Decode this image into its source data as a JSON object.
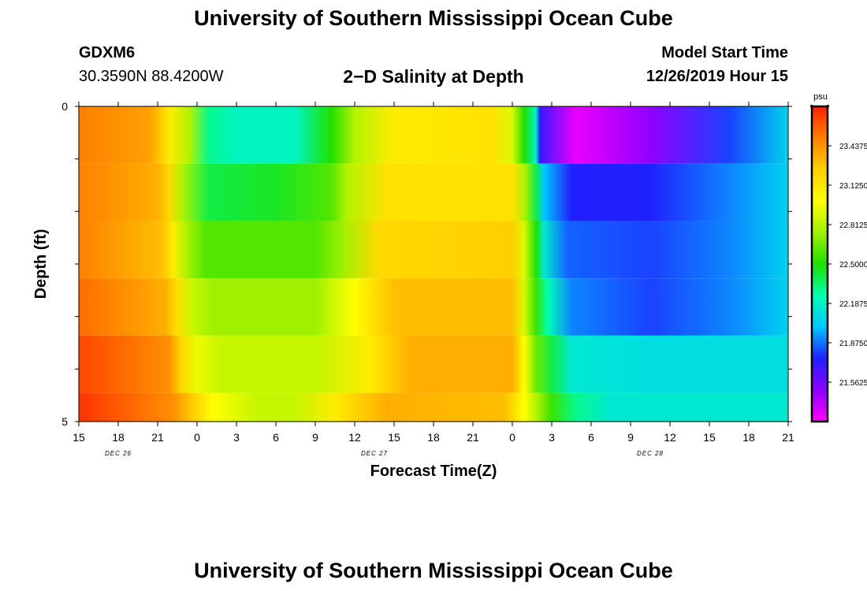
{
  "page": {
    "title": "University of Southern Mississippi Ocean Cube",
    "footer_title": "University of Southern Mississippi Ocean Cube",
    "station_id": "GDXM6",
    "station_location": "30.3590N 88.4200W",
    "model_start_label": "Model Start Time",
    "model_start_value": "12/26/2019 Hour 15",
    "subtitle": "2−D Salinity at Depth"
  },
  "chart_data": {
    "type": "heatmap",
    "title": "2−D Salinity at Depth",
    "xlabel": "Forecast Time(Z)",
    "ylabel": "Depth (ft)",
    "x_start": "12/26/2019 Hour 15",
    "x_tick_labels": [
      "15",
      "18",
      "21",
      "0",
      "3",
      "6",
      "9",
      "12",
      "15",
      "18",
      "21",
      "0",
      "3",
      "6",
      "9",
      "12",
      "15",
      "18",
      "21"
    ],
    "date_labels": [
      {
        "label": "DEC 26",
        "at_tick": 1
      },
      {
        "label": "DEC 27",
        "at_tick": 7.5
      },
      {
        "label": "DEC 28",
        "at_tick": 14.5
      }
    ],
    "y_tick_labels": [
      {
        "value": 0,
        "label": "0"
      },
      {
        "value": 5,
        "label": "5"
      }
    ],
    "ylim": [
      0,
      5
    ],
    "y_reversed": true,
    "depth_bands": 5,
    "colorbar": {
      "unit": "psu",
      "min": 21.25,
      "max": 23.75,
      "levels": [
        "23.4375",
        "23.1250",
        "22.8125",
        "22.5000",
        "22.1875",
        "21.8750",
        "21.5625"
      ],
      "colors": [
        "#ff00ff",
        "#9000ff",
        "#2020ff",
        "#00c8ff",
        "#00ffb0",
        "#20e000",
        "#a0f000",
        "#ffff00",
        "#ffcf00",
        "#ff8000",
        "#ff2000"
      ]
    },
    "profiles": [
      {
        "depth": "0-1",
        "x": [
          0,
          1.8,
          2.3,
          2.8,
          3.3,
          4.0,
          5.5,
          6.4,
          7.0,
          8.0,
          10.5,
          11.0,
          11.3,
          11.6,
          11.7,
          12.6,
          14.5,
          16.5,
          18.0
        ],
        "v": [
          23.5,
          23.4,
          23.1,
          22.8,
          22.3,
          22.2,
          22.2,
          22.5,
          22.8,
          23.1,
          23.15,
          22.9,
          22.5,
          22.2,
          21.7,
          21.3,
          21.5,
          21.8,
          22.05
        ]
      },
      {
        "depth": "1-2",
        "x": [
          0,
          2.0,
          2.3,
          2.6,
          3.3,
          5.0,
          6.4,
          6.8,
          7.8,
          11.0,
          11.3,
          11.6,
          11.8,
          12.5,
          14.5,
          16.5,
          18.0
        ],
        "v": [
          23.5,
          23.35,
          23.2,
          22.8,
          22.4,
          22.45,
          22.6,
          22.8,
          23.15,
          23.15,
          22.8,
          22.4,
          22.0,
          21.75,
          21.75,
          21.9,
          22.05
        ]
      },
      {
        "depth": "2-3",
        "x": [
          0,
          2.1,
          2.4,
          2.7,
          3.2,
          6.0,
          6.7,
          7.6,
          11.0,
          11.3,
          11.6,
          11.8,
          12.4,
          14.5,
          16.5,
          18.0
        ],
        "v": [
          23.5,
          23.3,
          23.1,
          22.8,
          22.6,
          22.6,
          22.75,
          23.2,
          23.25,
          22.9,
          22.5,
          22.15,
          21.85,
          21.8,
          21.9,
          22.05
        ]
      },
      {
        "depth": "3-4",
        "x": [
          0,
          2.2,
          2.5,
          2.9,
          3.4,
          6.0,
          7.0,
          8.0,
          11.0,
          11.3,
          11.6,
          11.9,
          12.5,
          14.5,
          16.5,
          18.0
        ],
        "v": [
          23.55,
          23.35,
          23.15,
          22.85,
          22.75,
          22.75,
          23.0,
          23.3,
          23.3,
          22.9,
          22.55,
          22.25,
          21.9,
          21.8,
          21.9,
          22.05
        ]
      },
      {
        "depth": "4-5",
        "x": [
          0,
          2.3,
          2.6,
          3.0,
          3.6,
          6.0,
          7.4,
          8.4,
          11.0,
          11.3,
          11.6,
          12.0,
          12.5,
          14.5,
          16.5,
          18.0
        ],
        "v": [
          23.65,
          23.45,
          23.2,
          22.95,
          22.85,
          22.85,
          23.1,
          23.35,
          23.35,
          23.0,
          22.65,
          22.4,
          22.15,
          22.1,
          22.1,
          22.1
        ]
      },
      {
        "depth": "5",
        "x": [
          0,
          2.4,
          3.0,
          3.4,
          4.5,
          5.5,
          6.5,
          7.8,
          10.8,
          11.3,
          11.6,
          12.0,
          12.6,
          13.5,
          15.0,
          16.5,
          18.0
        ],
        "v": [
          23.7,
          23.45,
          23.2,
          23.0,
          22.85,
          22.85,
          23.1,
          23.35,
          23.3,
          23.0,
          22.8,
          22.55,
          22.3,
          22.15,
          22.15,
          22.15,
          22.15
        ]
      }
    ],
    "grid": false
  }
}
